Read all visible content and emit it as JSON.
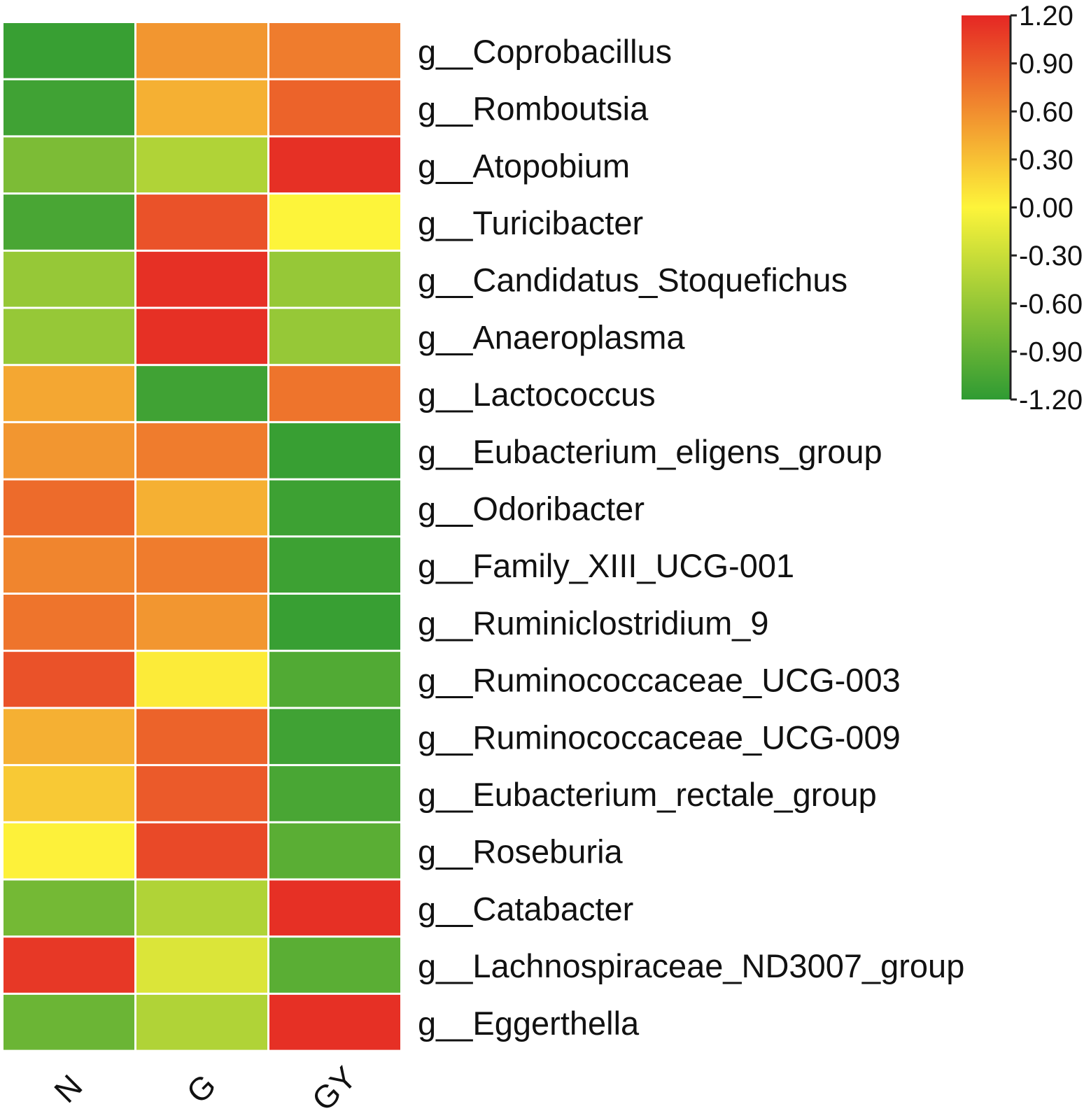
{
  "chart_data": {
    "type": "heatmap",
    "title": "",
    "columns": [
      "N",
      "G",
      "GY"
    ],
    "rows": [
      "g__Coprobacillus",
      "g__Romboutsia",
      "g__Atopobium",
      "g__Turicibacter",
      "g__Candidatus_Stoquefichus",
      "g__Anaeroplasma",
      "g__Lactococcus",
      "g__Eubacterium_eligens_group",
      "g__Odoribacter",
      "g__Family_XIII_UCG-001",
      "g__Ruminiclostridium_9",
      "g__Ruminococcaceae_UCG-003",
      "g__Ruminococcaceae_UCG-009",
      "g__Eubacterium_rectale_group",
      "g__Roseburia",
      "g__Catabacter",
      "g__Lachnospiraceae_ND3007_group",
      "g__Eggerthella"
    ],
    "values": [
      [
        -1.15,
        0.55,
        0.7
      ],
      [
        -1.1,
        0.4,
        0.85
      ],
      [
        -0.75,
        -0.45,
        1.15
      ],
      [
        -1.05,
        0.95,
        0.0
      ],
      [
        -0.6,
        1.15,
        -0.6
      ],
      [
        -0.6,
        1.15,
        -0.6
      ],
      [
        0.45,
        -1.1,
        0.75
      ],
      [
        0.55,
        0.7,
        -1.15
      ],
      [
        0.8,
        0.4,
        -1.12
      ],
      [
        0.65,
        0.7,
        -1.12
      ],
      [
        0.75,
        0.55,
        -1.15
      ],
      [
        0.95,
        0.05,
        -1.0
      ],
      [
        0.4,
        0.85,
        -1.1
      ],
      [
        0.25,
        0.9,
        -1.05
      ],
      [
        0.02,
        1.0,
        -0.95
      ],
      [
        -0.8,
        -0.45,
        1.15
      ],
      [
        1.1,
        -0.2,
        -0.95
      ],
      [
        -0.85,
        -0.45,
        1.15
      ]
    ],
    "colorbar": {
      "min": -1.2,
      "max": 1.2,
      "ticks": [
        "1.20",
        "0.90",
        "0.60",
        "0.30",
        "0.00",
        "-0.30",
        "-0.60",
        "-0.90",
        "-1.20"
      ],
      "tick_values": [
        1.2,
        0.9,
        0.6,
        0.3,
        0.0,
        -0.3,
        -0.6,
        -0.9,
        -1.2
      ],
      "colors": [
        "#2f9b33",
        "#fdf43a",
        "#e52724"
      ]
    },
    "legend_position": "top-right"
  }
}
